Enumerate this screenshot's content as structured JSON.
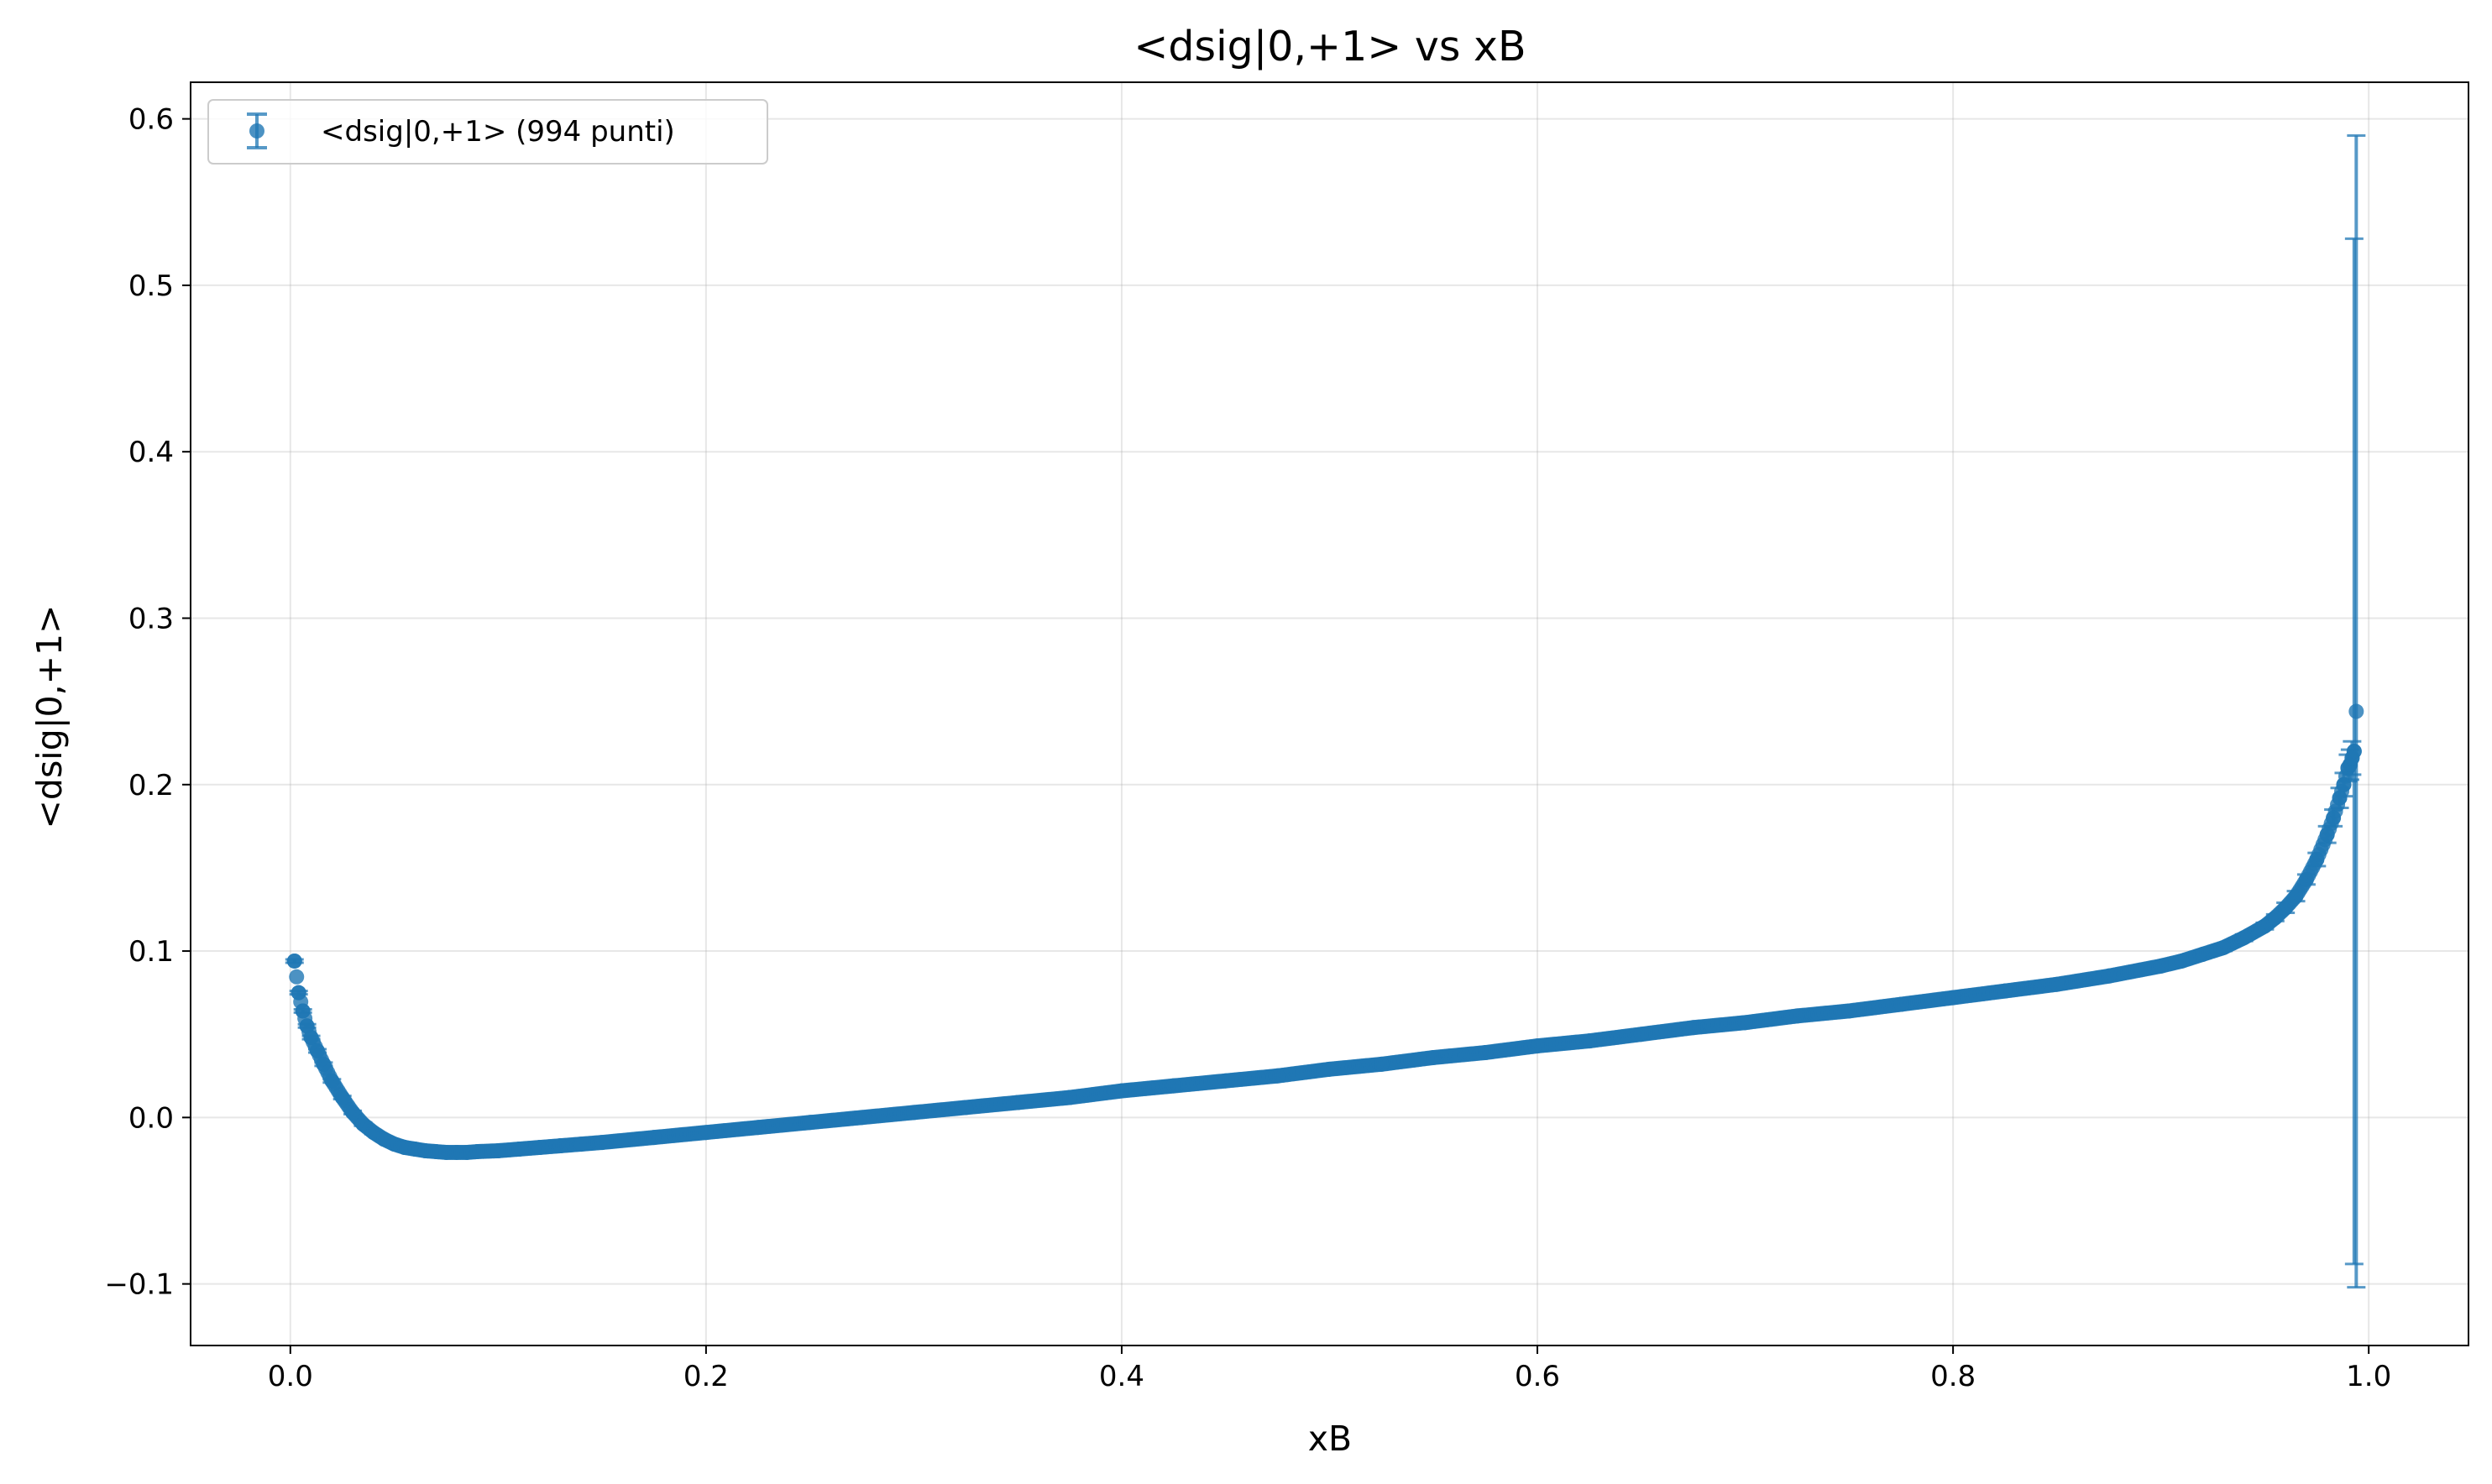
{
  "chart_data": {
    "type": "scatter",
    "title": "<dsig|0,+1> vs xB",
    "xlabel": "xB",
    "ylabel": "<dsig|0,+1>",
    "xlim": [
      -0.048,
      1.048
    ],
    "ylim": [
      -0.137,
      0.622
    ],
    "xticks": [
      0.0,
      0.2,
      0.4,
      0.6,
      0.8,
      1.0
    ],
    "xtick_labels": [
      "0.0",
      "0.2",
      "0.4",
      "0.6",
      "0.8",
      "1.0"
    ],
    "yticks": [
      -0.1,
      0.0,
      0.1,
      0.2,
      0.3,
      0.4,
      0.5,
      0.6
    ],
    "ytick_labels": [
      "−0.1",
      "0.0",
      "0.1",
      "0.2",
      "0.3",
      "0.4",
      "0.5",
      "0.6"
    ],
    "grid": true,
    "legend_position": "top-left",
    "color": "#1f77b4",
    "series": [
      {
        "name": "<dsig|0,+1> (994 punti)",
        "x": [
          0.002,
          0.004,
          0.006,
          0.008,
          0.01,
          0.013,
          0.016,
          0.02,
          0.025,
          0.03,
          0.035,
          0.04,
          0.045,
          0.05,
          0.055,
          0.06,
          0.065,
          0.07,
          0.075,
          0.08,
          0.085,
          0.09,
          0.1,
          0.11,
          0.12,
          0.13,
          0.14,
          0.15,
          0.175,
          0.2,
          0.225,
          0.25,
          0.275,
          0.3,
          0.325,
          0.35,
          0.375,
          0.4,
          0.425,
          0.45,
          0.475,
          0.5,
          0.525,
          0.55,
          0.575,
          0.6,
          0.625,
          0.65,
          0.675,
          0.7,
          0.725,
          0.75,
          0.775,
          0.8,
          0.825,
          0.85,
          0.875,
          0.9,
          0.91,
          0.92,
          0.93,
          0.94,
          0.95,
          0.955,
          0.96,
          0.965,
          0.97,
          0.975,
          0.98,
          0.983,
          0.986,
          0.988,
          0.99,
          0.991,
          0.992,
          0.993,
          0.994
        ],
        "y": [
          0.094,
          0.075,
          0.064,
          0.055,
          0.048,
          0.04,
          0.032,
          0.022,
          0.012,
          0.003,
          -0.004,
          -0.009,
          -0.013,
          -0.016,
          -0.018,
          -0.019,
          -0.02,
          -0.0205,
          -0.021,
          -0.021,
          -0.021,
          -0.0205,
          -0.02,
          -0.019,
          -0.018,
          -0.017,
          -0.016,
          -0.015,
          -0.012,
          -0.009,
          -0.006,
          -0.003,
          0.0,
          0.003,
          0.006,
          0.009,
          0.012,
          0.016,
          0.019,
          0.022,
          0.025,
          0.029,
          0.032,
          0.036,
          0.039,
          0.043,
          0.046,
          0.05,
          0.054,
          0.057,
          0.061,
          0.064,
          0.068,
          0.072,
          0.076,
          0.08,
          0.085,
          0.091,
          0.094,
          0.098,
          0.102,
          0.108,
          0.115,
          0.12,
          0.126,
          0.133,
          0.143,
          0.155,
          0.17,
          0.18,
          0.192,
          0.2,
          0.21,
          0.212,
          0.216,
          0.22,
          0.244
        ],
        "err": [
          0.001,
          0.001,
          0.001,
          0.001,
          0.001,
          0.001,
          0.001,
          0.001,
          0.001,
          0.001,
          0.001,
          0.001,
          0.001,
          0.001,
          0.001,
          0.001,
          0.001,
          0.001,
          0.001,
          0.001,
          0.001,
          0.001,
          0.001,
          0.001,
          0.001,
          0.001,
          0.001,
          0.001,
          0.001,
          0.001,
          0.001,
          0.001,
          0.001,
          0.001,
          0.001,
          0.001,
          0.001,
          0.001,
          0.001,
          0.001,
          0.001,
          0.001,
          0.001,
          0.001,
          0.001,
          0.001,
          0.001,
          0.001,
          0.001,
          0.001,
          0.001,
          0.001,
          0.001,
          0.001,
          0.001,
          0.001,
          0.001,
          0.001,
          0.001,
          0.001,
          0.002,
          0.002,
          0.002,
          0.002,
          0.003,
          0.003,
          0.003,
          0.004,
          0.005,
          0.005,
          0.006,
          0.007,
          0.008,
          0.009,
          0.01,
          0.308,
          0.346
        ]
      }
    ]
  }
}
